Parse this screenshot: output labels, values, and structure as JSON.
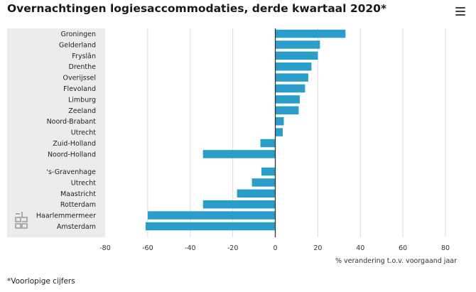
{
  "header": {
    "title": "Overnachtingen logiesaccommodaties, derde kwartaal 2020*",
    "menu_icon": "hamburger-menu-icon"
  },
  "logo_icon": "cbs-logo-icon",
  "footnote": "*Voorlopige cijfers",
  "colors": {
    "bar": "#2b9dc9",
    "panel": "#ececec",
    "grid": "#dddddd",
    "zero_line": "#333333"
  },
  "chart_data": {
    "type": "bar",
    "orientation": "horizontal",
    "title": "Overnachtingen logiesaccommodaties, derde kwartaal 2020*",
    "xlabel": "% verandering t.o.v. voorgaand jaar",
    "ylabel": "",
    "xlim": [
      -80,
      80
    ],
    "xticks": [
      -80,
      -60,
      -40,
      -20,
      0,
      20,
      40,
      60,
      80
    ],
    "grid": true,
    "groups": [
      {
        "categories": [
          "Groningen",
          "Gelderland",
          "Fryslân",
          "Drenthe",
          "Overijssel",
          "Flevoland",
          "Limburg",
          "Zeeland",
          "Noord-Brabant",
          "Utrecht",
          "Zuid-Holland",
          "Noord-Holland"
        ],
        "values": [
          33,
          21,
          20,
          17,
          15.5,
          14,
          11.5,
          11,
          4,
          3.5,
          -7,
          -34
        ]
      },
      {
        "categories": [
          "'s-Gravenhage",
          "Utrecht",
          "Maastricht",
          "Rotterdam",
          "Haarlemmermeer",
          "Amsterdam"
        ],
        "values": [
          -6.5,
          -11,
          -18,
          -34,
          -60,
          -61
        ]
      }
    ]
  }
}
